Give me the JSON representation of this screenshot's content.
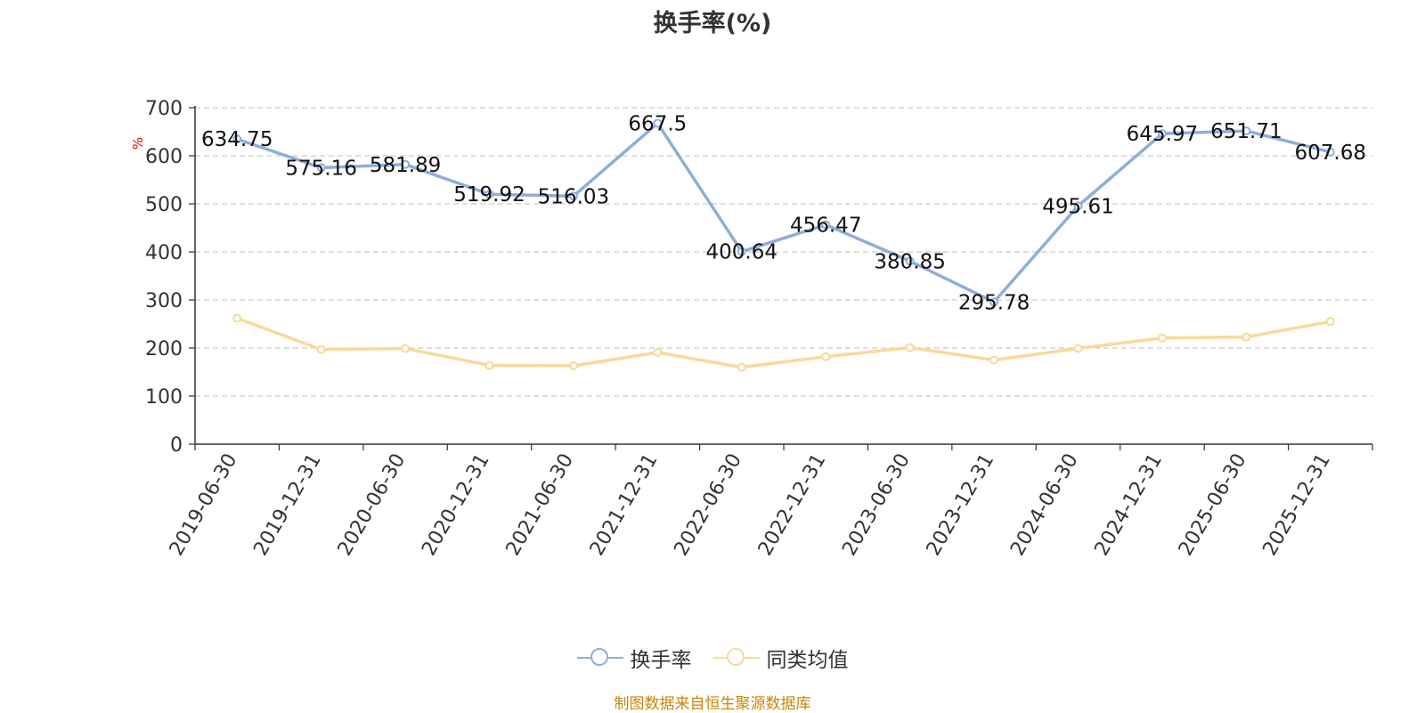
{
  "title": "换手率(%)",
  "unit_label": "%",
  "source": "制图数据来自恒生聚源数据库",
  "colors": {
    "series1": "#8eaed9",
    "series2": "#f9d99a",
    "grid": "#cccccc",
    "axis": "#333333"
  },
  "legend": [
    {
      "label": "换手率",
      "color": "#8eaed9"
    },
    {
      "label": "同类均值",
      "color": "#f9d99a"
    }
  ],
  "chart_data": {
    "type": "line",
    "title": "换手率(%)",
    "ylabel": "%",
    "ylim": [
      0,
      700
    ],
    "yticks": [
      0,
      100,
      200,
      300,
      400,
      500,
      600,
      700
    ],
    "grid": true,
    "legend_position": "bottom",
    "categories": [
      "2019-06-30",
      "2019-12-31",
      "2020-06-30",
      "2020-12-31",
      "2021-06-30",
      "2021-12-31",
      "2022-06-30",
      "2022-12-31",
      "2023-06-30",
      "2023-12-31",
      "2024-06-30",
      "2024-12-31",
      "2025-06-30",
      "2025-12-31"
    ],
    "series": [
      {
        "name": "换手率",
        "values": [
          634.75,
          575.16,
          581.89,
          519.92,
          516.03,
          667.5,
          400.64,
          456.47,
          380.85,
          295.78,
          495.61,
          645.97,
          651.71,
          607.68
        ],
        "labels": [
          "634.75",
          "575.16",
          "581.89",
          "519.92",
          "516.03",
          "667.5",
          "400.64",
          "456.47",
          "380.85",
          "295.78",
          "495.61",
          "645.97",
          "651.71",
          "607.68"
        ]
      },
      {
        "name": "同类均值",
        "values": [
          262,
          197,
          199,
          164,
          163,
          191,
          160,
          182,
          201,
          175,
          199,
          221,
          223,
          255
        ]
      }
    ]
  }
}
